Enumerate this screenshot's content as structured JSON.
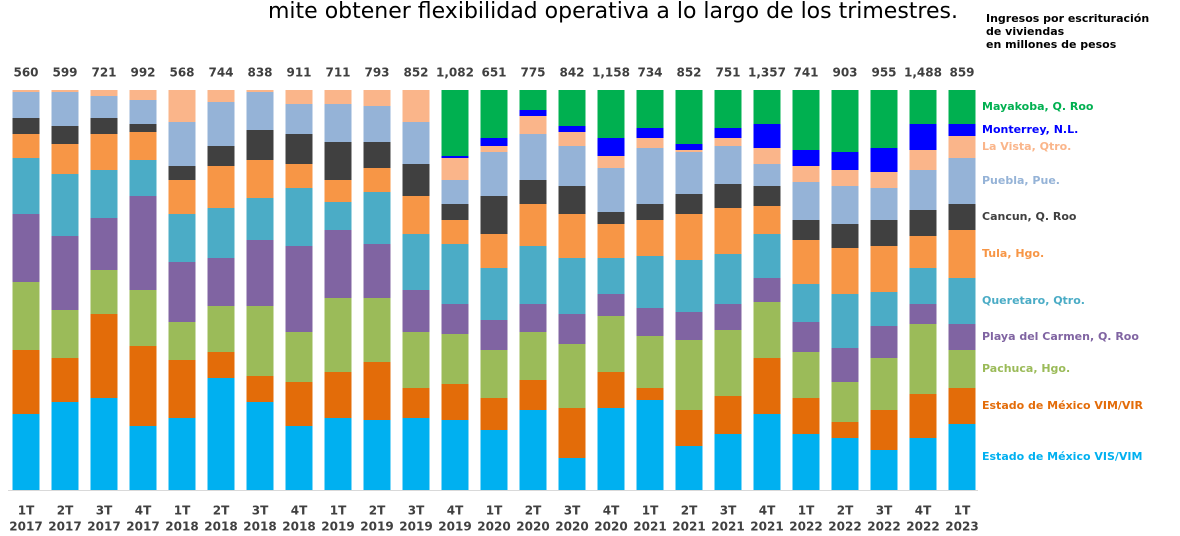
{
  "chart_data": {
    "type": "stacked_bar_100",
    "caption": "mite obtener flexibilidad operativa a lo largo de los trimestres.",
    "title": [
      "Ingresos por escrituración",
      "de viviendas",
      "en millones de pesos"
    ],
    "categories": [
      [
        "1T",
        "2017"
      ],
      [
        "2T",
        "2017"
      ],
      [
        "3T",
        "2017"
      ],
      [
        "4T",
        "2017"
      ],
      [
        "1T",
        "2018"
      ],
      [
        "2T",
        "2018"
      ],
      [
        "3T",
        "2018"
      ],
      [
        "4T",
        "2018"
      ],
      [
        "1T",
        "2019"
      ],
      [
        "2T",
        "2019"
      ],
      [
        "3T",
        "2019"
      ],
      [
        "4T",
        "2019"
      ],
      [
        "1T",
        "2020"
      ],
      [
        "2T",
        "2020"
      ],
      [
        "3T",
        "2020"
      ],
      [
        "4T",
        "2020"
      ],
      [
        "1T",
        "2021"
      ],
      [
        "2T",
        "2021"
      ],
      [
        "3T",
        "2021"
      ],
      [
        "4T",
        "2021"
      ],
      [
        "1T",
        "2022"
      ],
      [
        "2T",
        "2022"
      ],
      [
        "3T",
        "2022"
      ],
      [
        "4T",
        "2022"
      ],
      [
        "1T",
        "2023"
      ]
    ],
    "totals": {
      "values": [
        560,
        599,
        721,
        992,
        568,
        744,
        838,
        911,
        711,
        793,
        852,
        1082,
        651,
        775,
        842,
        1158,
        734,
        852,
        751,
        1357,
        741,
        903,
        955,
        1488,
        859
      ],
      "value_labels": [
        "560",
        "599",
        "721",
        "992",
        "568",
        "744",
        "838",
        "911",
        "711",
        "793",
        "852",
        "1,082",
        "651",
        "775",
        "842",
        "1,158",
        "734",
        "852",
        "751",
        "1,357",
        "741",
        "903",
        "955",
        "1,488",
        "859"
      ]
    },
    "series": [
      {
        "name": "Estado de México VIS/VIM",
        "color": "#00b0f0",
        "values": [
          19,
          22,
          23,
          16,
          18,
          28,
          22,
          16,
          18,
          17.5,
          18,
          17.5,
          15,
          20,
          8,
          20.5,
          22.5,
          11,
          14,
          19,
          14,
          13,
          10,
          13,
          16.5
        ]
      },
      {
        "name": "Estado de México VIM/VIR",
        "color": "#e36c09",
        "values": [
          16,
          11,
          21,
          20,
          14.5,
          6.5,
          6.5,
          11,
          11.5,
          14.5,
          7.5,
          9,
          8,
          7.5,
          12.5,
          9,
          3,
          9,
          9.5,
          14,
          9,
          4,
          10,
          11,
          9
        ]
      },
      {
        "name": "Pachuca, Hgo.",
        "color": "#9bbb59",
        "values": [
          17,
          12,
          11,
          14,
          9.5,
          11.5,
          17.5,
          12.5,
          18.5,
          16,
          14,
          12.5,
          12,
          12,
          16,
          14,
          13,
          17.5,
          16.5,
          14,
          11.5,
          10,
          13,
          17.5,
          9.5
        ]
      },
      {
        "name": "Playa del Carmen, Q. Roo",
        "color": "#8064a2",
        "values": [
          17,
          18.5,
          13,
          23.5,
          15,
          12,
          16.5,
          21.5,
          17,
          13.5,
          10.5,
          7.5,
          7.5,
          7,
          7.5,
          5.5,
          7,
          7,
          6.5,
          6,
          7.5,
          8.5,
          8,
          5,
          6.5
        ]
      },
      {
        "name": "Queretaro, Qtro.",
        "color": "#4bacc6",
        "values": [
          14,
          15.5,
          12,
          9,
          12,
          12.5,
          10.5,
          14.5,
          7,
          13,
          14,
          15,
          13,
          14.5,
          14,
          9,
          13,
          13,
          12.5,
          11,
          9.5,
          13.5,
          8.5,
          9,
          11.5
        ]
      },
      {
        "name": "Tula, Hgo.",
        "color": "#f79646",
        "values": [
          6,
          7.5,
          9,
          7,
          8.5,
          10.5,
          9.5,
          6,
          5.5,
          6,
          9.5,
          6,
          8.5,
          10.5,
          11,
          8.5,
          9,
          11.5,
          11.5,
          7,
          11,
          11.5,
          11.5,
          8,
          12
        ]
      },
      {
        "name": "Cancun, Q. Roo",
        "color": "#404040",
        "values": [
          4,
          4.5,
          4,
          2,
          3.5,
          5,
          7.5,
          7.5,
          9.5,
          6.5,
          8,
          4,
          9.5,
          6,
          7,
          3,
          4,
          5,
          6,
          5,
          5,
          6,
          6.5,
          6.5,
          6.5
        ]
      },
      {
        "name": "Puebla, Pue.",
        "color": "#95b3d7",
        "values": [
          6.5,
          8.5,
          5.5,
          6,
          11,
          11,
          9.5,
          7.5,
          9.5,
          9,
          10.5,
          6,
          11,
          11.5,
          10,
          11,
          14,
          10.5,
          9.5,
          5.5,
          9.5,
          9.5,
          8,
          10,
          11.5
        ]
      },
      {
        "name": "La Vista, Qtro.",
        "color": "#fab58a",
        "values": [
          0.5,
          0.5,
          1.5,
          2.5,
          8,
          3,
          0.5,
          3.5,
          3.5,
          4,
          8,
          5.5,
          1.5,
          4.5,
          3.5,
          3,
          2.5,
          0.5,
          2,
          4,
          4,
          4,
          4,
          5,
          5.5
        ]
      },
      {
        "name": "Monterrey, N.L.",
        "color": "#0000ff",
        "values": [
          0,
          0,
          0,
          0,
          0,
          0,
          0,
          0,
          0,
          0,
          0,
          0.5,
          2,
          1.5,
          1.5,
          4.5,
          2.5,
          1.5,
          2.5,
          6,
          4,
          4.5,
          6,
          6.5,
          3
        ]
      },
      {
        "name": "Mayakoba, Q. Roo",
        "color": "#00b050",
        "values": [
          0,
          0,
          0,
          0,
          0,
          0,
          0,
          0,
          0,
          0,
          0,
          16.5,
          12,
          5,
          9,
          12,
          9.5,
          13.5,
          9.5,
          8.5,
          15,
          15.5,
          14.5,
          8.5,
          8.5
        ]
      }
    ]
  }
}
